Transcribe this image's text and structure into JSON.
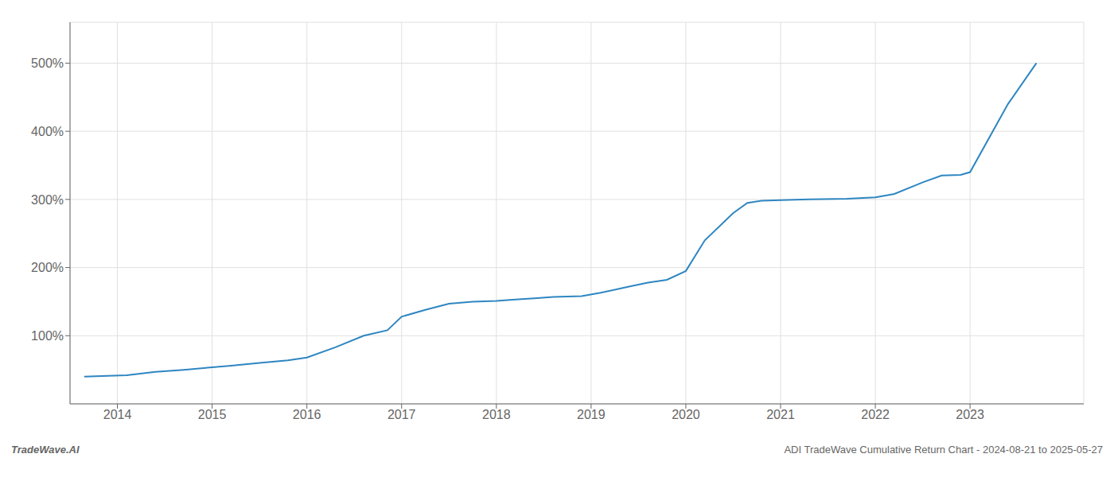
{
  "chart_data": {
    "type": "line",
    "annotations": [
      "TradeWave.AI",
      "ADI TradeWave Cumulative Return Chart - 2024-08-21 to 2025-05-27"
    ],
    "x": [
      2013.65,
      2013.9,
      2014.1,
      2014.4,
      2014.7,
      2014.95,
      2015.2,
      2015.5,
      2015.8,
      2016.0,
      2016.3,
      2016.6,
      2016.85,
      2017.0,
      2017.25,
      2017.5,
      2017.75,
      2018.0,
      2018.2,
      2018.4,
      2018.6,
      2018.9,
      2019.1,
      2019.4,
      2019.6,
      2019.8,
      2020.0,
      2020.2,
      2020.5,
      2020.65,
      2020.8,
      2021.0,
      2021.3,
      2021.7,
      2022.0,
      2022.2,
      2022.5,
      2022.7,
      2022.9,
      2023.0,
      2023.4,
      2023.7
    ],
    "values": [
      40,
      41,
      42,
      47,
      50,
      53,
      56,
      60,
      64,
      68,
      83,
      100,
      108,
      128,
      138,
      147,
      150,
      151,
      153,
      155,
      157,
      158,
      163,
      172,
      178,
      182,
      195,
      240,
      280,
      295,
      298,
      299,
      300,
      301,
      303,
      308,
      325,
      335,
      336,
      340,
      440,
      500
    ],
    "color": "#2e86c1",
    "xlim": [
      2013.5,
      2024.2
    ],
    "xticks": [
      2014,
      2015,
      2016,
      2017,
      2018,
      2019,
      2020,
      2021,
      2022,
      2023
    ],
    "ylim": [
      0,
      560
    ],
    "yticks": [
      {
        "value": 100,
        "label": "100%"
      },
      {
        "value": 200,
        "label": "200%"
      },
      {
        "value": 300,
        "label": "300%"
      },
      {
        "value": 400,
        "label": "400%"
      },
      {
        "value": 500,
        "label": "500%"
      }
    ],
    "grid": true
  }
}
